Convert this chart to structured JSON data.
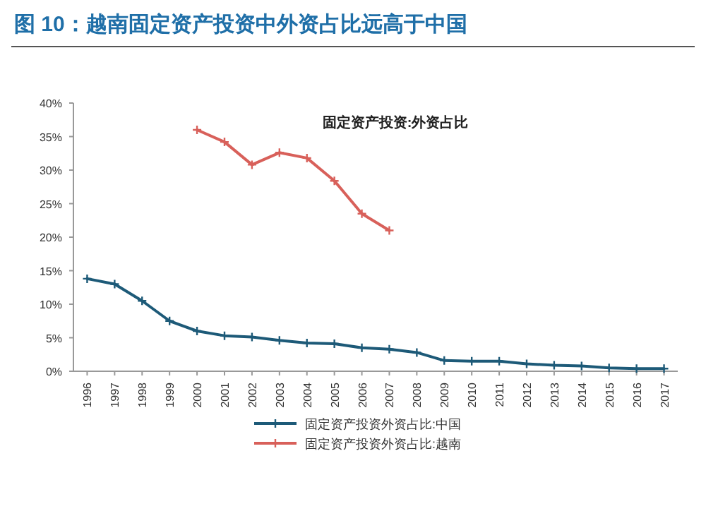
{
  "chart_data": {
    "type": "line",
    "title": "图 10：越南固定资产投资中外资占比远高于中国",
    "subtitle": "固定资产投资:外资占比",
    "categories": [
      "1996",
      "1997",
      "1998",
      "1999",
      "2000",
      "2001",
      "2002",
      "2003",
      "2004",
      "2005",
      "2006",
      "2007",
      "2008",
      "2009",
      "2010",
      "2011",
      "2012",
      "2013",
      "2014",
      "2015",
      "2016",
      "2017"
    ],
    "series": [
      {
        "name": "固定资产投资外资占比:中国",
        "color": "#1d5a78",
        "values": [
          13.8,
          13.0,
          10.5,
          7.5,
          6.0,
          5.3,
          5.1,
          4.6,
          4.2,
          4.1,
          3.5,
          3.3,
          2.8,
          1.6,
          1.5,
          1.5,
          1.1,
          0.9,
          0.8,
          0.5,
          0.4,
          0.4
        ]
      },
      {
        "name": "固定资产投资外资占比:越南",
        "color": "#d8605a",
        "values": [
          null,
          null,
          null,
          null,
          36.0,
          34.2,
          30.8,
          32.6,
          31.8,
          28.4,
          23.5,
          21.0,
          null,
          null,
          null,
          null,
          null,
          null,
          null,
          null,
          null,
          null
        ]
      }
    ],
    "ylim": [
      0,
      40
    ],
    "yticks": [
      {
        "value": 0,
        "label": "0%"
      },
      {
        "value": 5,
        "label": "5%"
      },
      {
        "value": 10,
        "label": "10%"
      },
      {
        "value": 15,
        "label": "15%"
      },
      {
        "value": 20,
        "label": "20%"
      },
      {
        "value": 25,
        "label": "25%"
      },
      {
        "value": 30,
        "label": "30%"
      },
      {
        "value": 35,
        "label": "35%"
      },
      {
        "value": 40,
        "label": "40%"
      }
    ],
    "legend": "bottom",
    "marker": "cross",
    "line_style": "solid"
  }
}
